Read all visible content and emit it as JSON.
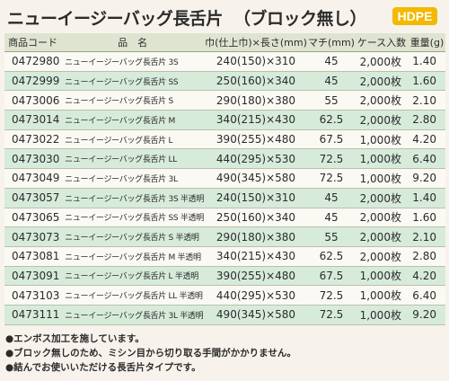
{
  "header": {
    "title": "ニューイージーバッグ長舌片",
    "subtitle": "（ブロック無し）",
    "badge": "HDPE"
  },
  "table": {
    "columns": [
      "商品コード",
      "品　名",
      "巾(仕上巾)×長さ(mm)",
      "マチ(mm)",
      "ケース入数",
      "重量(g)"
    ],
    "rows": [
      {
        "code": "0472980",
        "name": "ニューイージーバッグ長舌片 3S",
        "size": "240(150)×310",
        "gusset": "45",
        "qty": "2,000枚",
        "weight": "1.40"
      },
      {
        "code": "0472999",
        "name": "ニューイージーバッグ長舌片 SS",
        "size": "250(160)×340",
        "gusset": "45",
        "qty": "2,000枚",
        "weight": "1.60"
      },
      {
        "code": "0473006",
        "name": "ニューイージーバッグ長舌片 S",
        "size": "290(180)×380",
        "gusset": "55",
        "qty": "2,000枚",
        "weight": "2.10"
      },
      {
        "code": "0473014",
        "name": "ニューイージーバッグ長舌片 M",
        "size": "340(215)×430",
        "gusset": "62.5",
        "qty": "2,000枚",
        "weight": "2.80"
      },
      {
        "code": "0473022",
        "name": "ニューイージーバッグ長舌片 L",
        "size": "390(255)×480",
        "gusset": "67.5",
        "qty": "1,000枚",
        "weight": "4.20"
      },
      {
        "code": "0473030",
        "name": "ニューイージーバッグ長舌片 LL",
        "size": "440(295)×530",
        "gusset": "72.5",
        "qty": "1,000枚",
        "weight": "6.40"
      },
      {
        "code": "0473049",
        "name": "ニューイージーバッグ長舌片 3L",
        "size": "490(345)×580",
        "gusset": "72.5",
        "qty": "1,000枚",
        "weight": "9.20"
      },
      {
        "code": "0473057",
        "name": "ニューイージーバッグ長舌片 3S 半透明",
        "size": "240(150)×310",
        "gusset": "45",
        "qty": "2,000枚",
        "weight": "1.40"
      },
      {
        "code": "0473065",
        "name": "ニューイージーバッグ長舌片 SS 半透明",
        "size": "250(160)×340",
        "gusset": "45",
        "qty": "2,000枚",
        "weight": "1.60"
      },
      {
        "code": "0473073",
        "name": "ニューイージーバッグ長舌片 S 半透明",
        "size": "290(180)×380",
        "gusset": "55",
        "qty": "2,000枚",
        "weight": "2.10"
      },
      {
        "code": "0473081",
        "name": "ニューイージーバッグ長舌片 M 半透明",
        "size": "340(215)×430",
        "gusset": "62.5",
        "qty": "2,000枚",
        "weight": "2.80"
      },
      {
        "code": "0473091",
        "name": "ニューイージーバッグ長舌片 L 半透明",
        "size": "390(255)×480",
        "gusset": "67.5",
        "qty": "1,000枚",
        "weight": "4.20"
      },
      {
        "code": "0473103",
        "name": "ニューイージーバッグ長舌片 LL 半透明",
        "size": "440(295)×530",
        "gusset": "72.5",
        "qty": "1,000枚",
        "weight": "6.40"
      },
      {
        "code": "0473111",
        "name": "ニューイージーバッグ長舌片 3L 半透明",
        "size": "490(345)×580",
        "gusset": "72.5",
        "qty": "1,000枚",
        "weight": "9.20"
      }
    ]
  },
  "notes": [
    "●エンボス加工を施しています。",
    "●ブロック無しのため、ミシン目から切り取る手間がかかりません。",
    "●結んでお使いいただける長舌片タイプです。"
  ],
  "colors": {
    "badge": "#f3b800",
    "row_alt": "#d7ebdb",
    "header_bg": "#dfe4d0"
  }
}
